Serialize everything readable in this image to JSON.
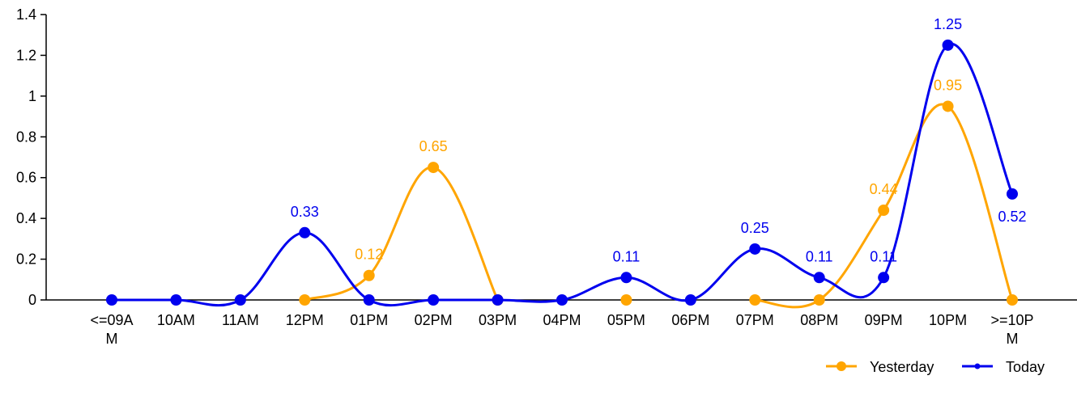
{
  "chart_data": {
    "type": "line",
    "smooth": true,
    "categories": [
      "<=09AM",
      "10AM",
      "11AM",
      "12PM",
      "01PM",
      "02PM",
      "03PM",
      "04PM",
      "05PM",
      "06PM",
      "07PM",
      "08PM",
      "09PM",
      "10PM",
      ">=10PM"
    ],
    "yticks": [
      "0",
      "0.2",
      "0.4",
      "0.6",
      "0.8",
      "1",
      "1.2",
      "1.4"
    ],
    "ylim": [
      0,
      1.4
    ],
    "grid": false,
    "legend_position": "bottom-right",
    "series": [
      {
        "name": "Yesterday",
        "color": "#FFA500",
        "values": [
          null,
          null,
          null,
          0,
          0.12,
          0.65,
          0,
          null,
          0,
          null,
          0,
          0,
          0.44,
          0.95,
          0
        ],
        "labels": [
          null,
          null,
          null,
          null,
          "0.12",
          "0.65",
          null,
          null,
          null,
          null,
          null,
          null,
          "0.44",
          "0.95",
          null
        ]
      },
      {
        "name": "Today",
        "color": "#0000EE",
        "values": [
          0,
          0,
          0,
          0.33,
          0,
          0,
          0,
          0,
          0.11,
          0,
          0.25,
          0.11,
          0.11,
          1.25,
          0.52
        ],
        "labels": [
          null,
          null,
          null,
          "0.33",
          null,
          null,
          null,
          null,
          "0.11",
          null,
          "0.25",
          "0.11",
          "0.11",
          "1.25",
          "0.52"
        ]
      }
    ]
  }
}
